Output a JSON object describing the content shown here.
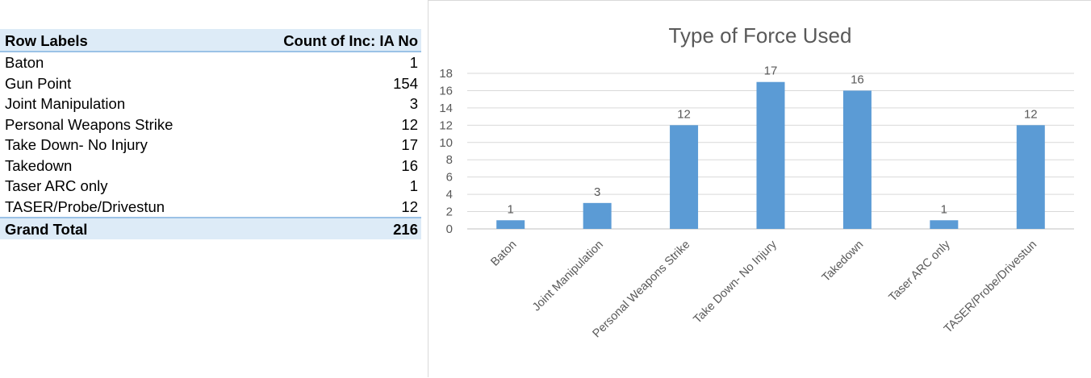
{
  "pivot_table": {
    "header": {
      "row_labels": "Row Labels",
      "count_label": "Count of Inc: IA No"
    },
    "rows": [
      {
        "label": "Baton",
        "value": "1"
      },
      {
        "label": "Gun Point",
        "value": "154"
      },
      {
        "label": "Joint Manipulation",
        "value": "3"
      },
      {
        "label": "Personal Weapons Strike",
        "value": "12"
      },
      {
        "label": "Take Down- No Injury",
        "value": "17"
      },
      {
        "label": "Takedown",
        "value": "16"
      },
      {
        "label": "Taser ARC only",
        "value": "1"
      },
      {
        "label": "TASER/Probe/Drivestun",
        "value": "12"
      }
    ],
    "total": {
      "label": "Grand Total",
      "value": "216"
    },
    "header_bg": "#ddebf7",
    "border_color": "#9bc2e6"
  },
  "chart_data": {
    "type": "bar",
    "title": "Type of Force Used",
    "xlabel": "",
    "ylabel": "",
    "categories": [
      "Baton",
      "Joint Manipulation",
      "Personal Weapons Strike",
      "Take Down- No Injury",
      "Takedown",
      "Taser ARC only",
      "TASER/Probe/Drivestun"
    ],
    "values": [
      1,
      3,
      12,
      17,
      16,
      1,
      12
    ],
    "data_labels": [
      "1",
      "3",
      "12",
      "17",
      "16",
      "1",
      "12"
    ],
    "ylim": [
      0,
      18
    ],
    "yticks": [
      "0",
      "2",
      "4",
      "6",
      "8",
      "10",
      "12",
      "14",
      "16",
      "18"
    ],
    "grid": true,
    "legend": "none",
    "bar_color": "#5b9bd5",
    "grid_color": "#d9d9d9",
    "text_color": "#595959"
  }
}
